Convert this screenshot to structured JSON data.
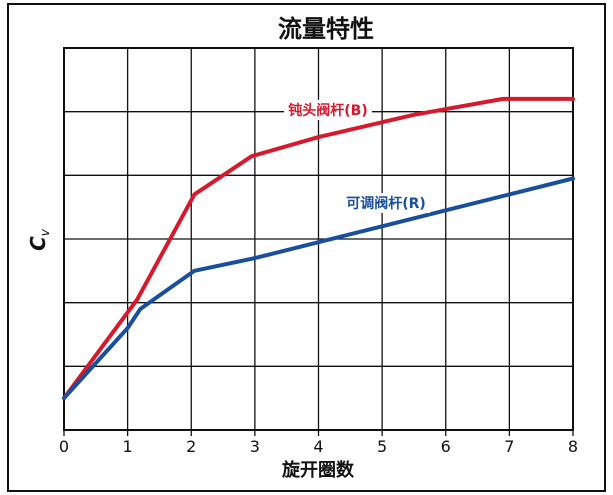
{
  "chart_data": {
    "type": "line",
    "title": "流量特性",
    "xlabel": "旋开圈数",
    "ylabel": "C",
    "ylabel_sub": "v",
    "xlim": [
      0,
      8
    ],
    "ylim": [
      0,
      6
    ],
    "x_ticks": [
      "0",
      "1",
      "2",
      "3",
      "4",
      "5",
      "6",
      "7",
      "8"
    ],
    "y_gridlines": [
      1,
      2,
      3,
      4,
      5
    ],
    "grid": true,
    "series": [
      {
        "name": "钝头阀杆(B)",
        "color": "#d7192d",
        "points": [
          [
            0,
            0.5
          ],
          [
            1.15,
            2.05
          ],
          [
            2.05,
            3.7
          ],
          [
            2.95,
            4.3
          ],
          [
            4.0,
            4.6
          ],
          [
            5.5,
            4.95
          ],
          [
            6.9,
            5.2
          ],
          [
            8.0,
            5.2
          ]
        ]
      },
      {
        "name": "可调阀杆(R)",
        "color": "#1a4fa0",
        "points": [
          [
            0,
            0.5
          ],
          [
            1.0,
            1.6
          ],
          [
            1.2,
            1.9
          ],
          [
            2.05,
            2.5
          ],
          [
            3.0,
            2.7
          ],
          [
            4.0,
            2.95
          ],
          [
            5.0,
            3.2
          ],
          [
            6.0,
            3.45
          ],
          [
            7.0,
            3.7
          ],
          [
            8.0,
            3.95
          ]
        ]
      }
    ]
  }
}
